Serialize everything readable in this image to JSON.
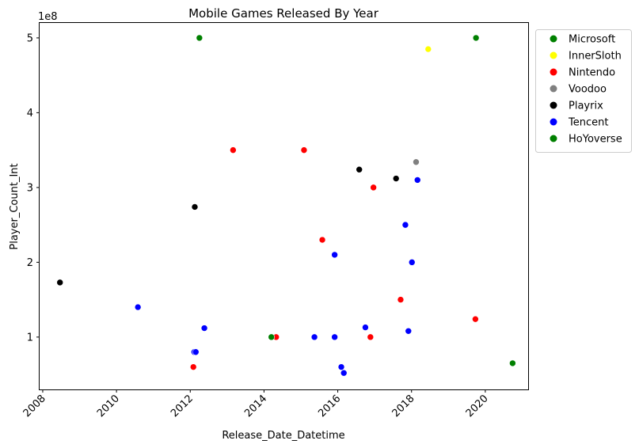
{
  "chart_data": {
    "type": "scatter",
    "title": "Mobile Games Released By Year",
    "xlabel": "Release_Date_Datetime",
    "ylabel": "Player_Count_Int",
    "y_offset_label": "1e8",
    "x_ticks": [
      "2008",
      "2010",
      "2012",
      "2014",
      "2016",
      "2018",
      "2020"
    ],
    "y_ticks": [
      "1",
      "2",
      "3",
      "4",
      "5"
    ],
    "xlim": [
      "2007-12-01",
      "2021-03-01"
    ],
    "ylim": [
      30000000,
      520000000
    ],
    "grid": false,
    "legend_position": "outside-right",
    "series": [
      {
        "name": "Microsoft",
        "color": "#008000",
        "points": [
          {
            "x": "2012-04-01",
            "y": 500000000
          },
          {
            "x": "2019-10-01",
            "y": 500000000
          }
        ]
      },
      {
        "name": "InnerSloth",
        "color": "#ffff00",
        "points": [
          {
            "x": "2018-06-15",
            "y": 485000000
          }
        ]
      },
      {
        "name": "Nintendo",
        "color": "#ff0000",
        "points": [
          {
            "x": "2013-03-01",
            "y": 350000000
          },
          {
            "x": "2015-02-01",
            "y": 350000000
          },
          {
            "x": "2016-12-20",
            "y": 300000000
          },
          {
            "x": "2015-08-01",
            "y": 230000000
          },
          {
            "x": "2017-09-15",
            "y": 150000000
          },
          {
            "x": "2019-09-25",
            "y": 124000000
          },
          {
            "x": "2014-05-01",
            "y": 100000000
          },
          {
            "x": "2016-11-20",
            "y": 100000000
          },
          {
            "x": "2012-02-01",
            "y": 60000000
          }
        ]
      },
      {
        "name": "Voodoo",
        "color": "#808080",
        "points": [
          {
            "x": "2018-02-15",
            "y": 334000000
          }
        ]
      },
      {
        "name": "Playrix",
        "color": "#000000",
        "points": [
          {
            "x": "2016-08-01",
            "y": 324000000
          },
          {
            "x": "2017-08-01",
            "y": 312000000
          },
          {
            "x": "2012-02-15",
            "y": 274000000
          },
          {
            "x": "2008-06-20",
            "y": 173000000
          }
        ]
      },
      {
        "name": "Tencent",
        "color": "#0000ff",
        "points": [
          {
            "x": "2018-03-01",
            "y": 310000000
          },
          {
            "x": "2017-11-01",
            "y": 250000000
          },
          {
            "x": "2015-12-01",
            "y": 210000000
          },
          {
            "x": "2018-01-05",
            "y": 200000000
          },
          {
            "x": "2010-08-01",
            "y": 140000000
          },
          {
            "x": "2012-05-20",
            "y": 112000000
          },
          {
            "x": "2016-10-01",
            "y": 113000000
          },
          {
            "x": "2017-12-01",
            "y": 108000000
          },
          {
            "x": "2015-05-15",
            "y": 100000000
          },
          {
            "x": "2015-12-01",
            "y": 100000000
          },
          {
            "x": "2012-02-10",
            "y": 80000000
          },
          {
            "x": "2012-02-25",
            "y": 80000000
          },
          {
            "x": "2016-02-05",
            "y": 60000000
          },
          {
            "x": "2016-03-01",
            "y": 52000000
          }
        ]
      },
      {
        "name": "HoYoverse",
        "color": "#008000",
        "points": [
          {
            "x": "2014-03-15",
            "y": 100000000
          },
          {
            "x": "2020-09-28",
            "y": 65000000
          }
        ]
      }
    ]
  }
}
